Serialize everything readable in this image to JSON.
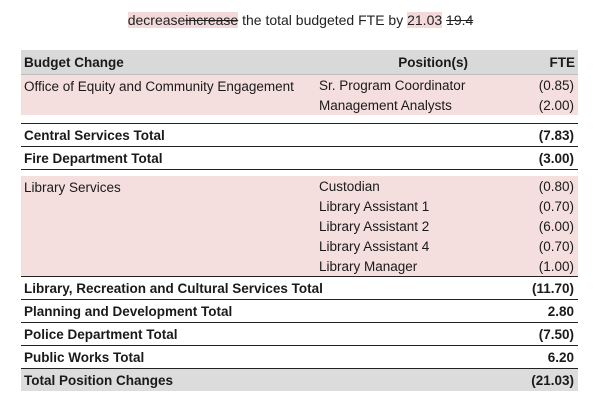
{
  "headline": {
    "w_decrease": "decrease",
    "w_increase": "increase",
    "middle": " the total budgeted FTE by ",
    "new_value": "21.03",
    "old_value": "19.4"
  },
  "table": {
    "headers": {
      "budget_change": "Budget Change",
      "positions": "Position(s)",
      "fte": "FTE"
    },
    "groups": [
      {
        "name": "Office of Equity and Community Engagement",
        "positions": [
          {
            "title": "Sr. Program Coordinator",
            "fte": "(0.85)"
          },
          {
            "title": "Management Analysts",
            "fte": "(2.00)"
          }
        ]
      },
      {
        "name": "Library Services",
        "positions": [
          {
            "title": "Custodian",
            "fte": "(0.80)"
          },
          {
            "title": "Library Assistant 1",
            "fte": "(0.70)"
          },
          {
            "title": "Library Assistant 2",
            "fte": "(6.00)"
          },
          {
            "title": "Library Assistant 4",
            "fte": "(0.70)"
          },
          {
            "title": "Library Manager",
            "fte": "(1.00)"
          }
        ]
      }
    ],
    "totals": {
      "central": {
        "label": "Central Services Total",
        "fte": "(7.83)"
      },
      "fire": {
        "label": "Fire Department Total",
        "fte": "(3.00)"
      },
      "library_rec": {
        "label": "Library, Recreation and Cultural Services Total",
        "fte": "(11.70)"
      },
      "planning": {
        "label": "Planning and Development Total",
        "fte": "2.80"
      },
      "police": {
        "label": "Police Department Total",
        "fte": "(7.50)"
      },
      "public_works": {
        "label": "Public Works Total",
        "fte": "6.20"
      },
      "overall": {
        "label": "Total Position Changes",
        "fte": "(21.03)"
      }
    }
  }
}
